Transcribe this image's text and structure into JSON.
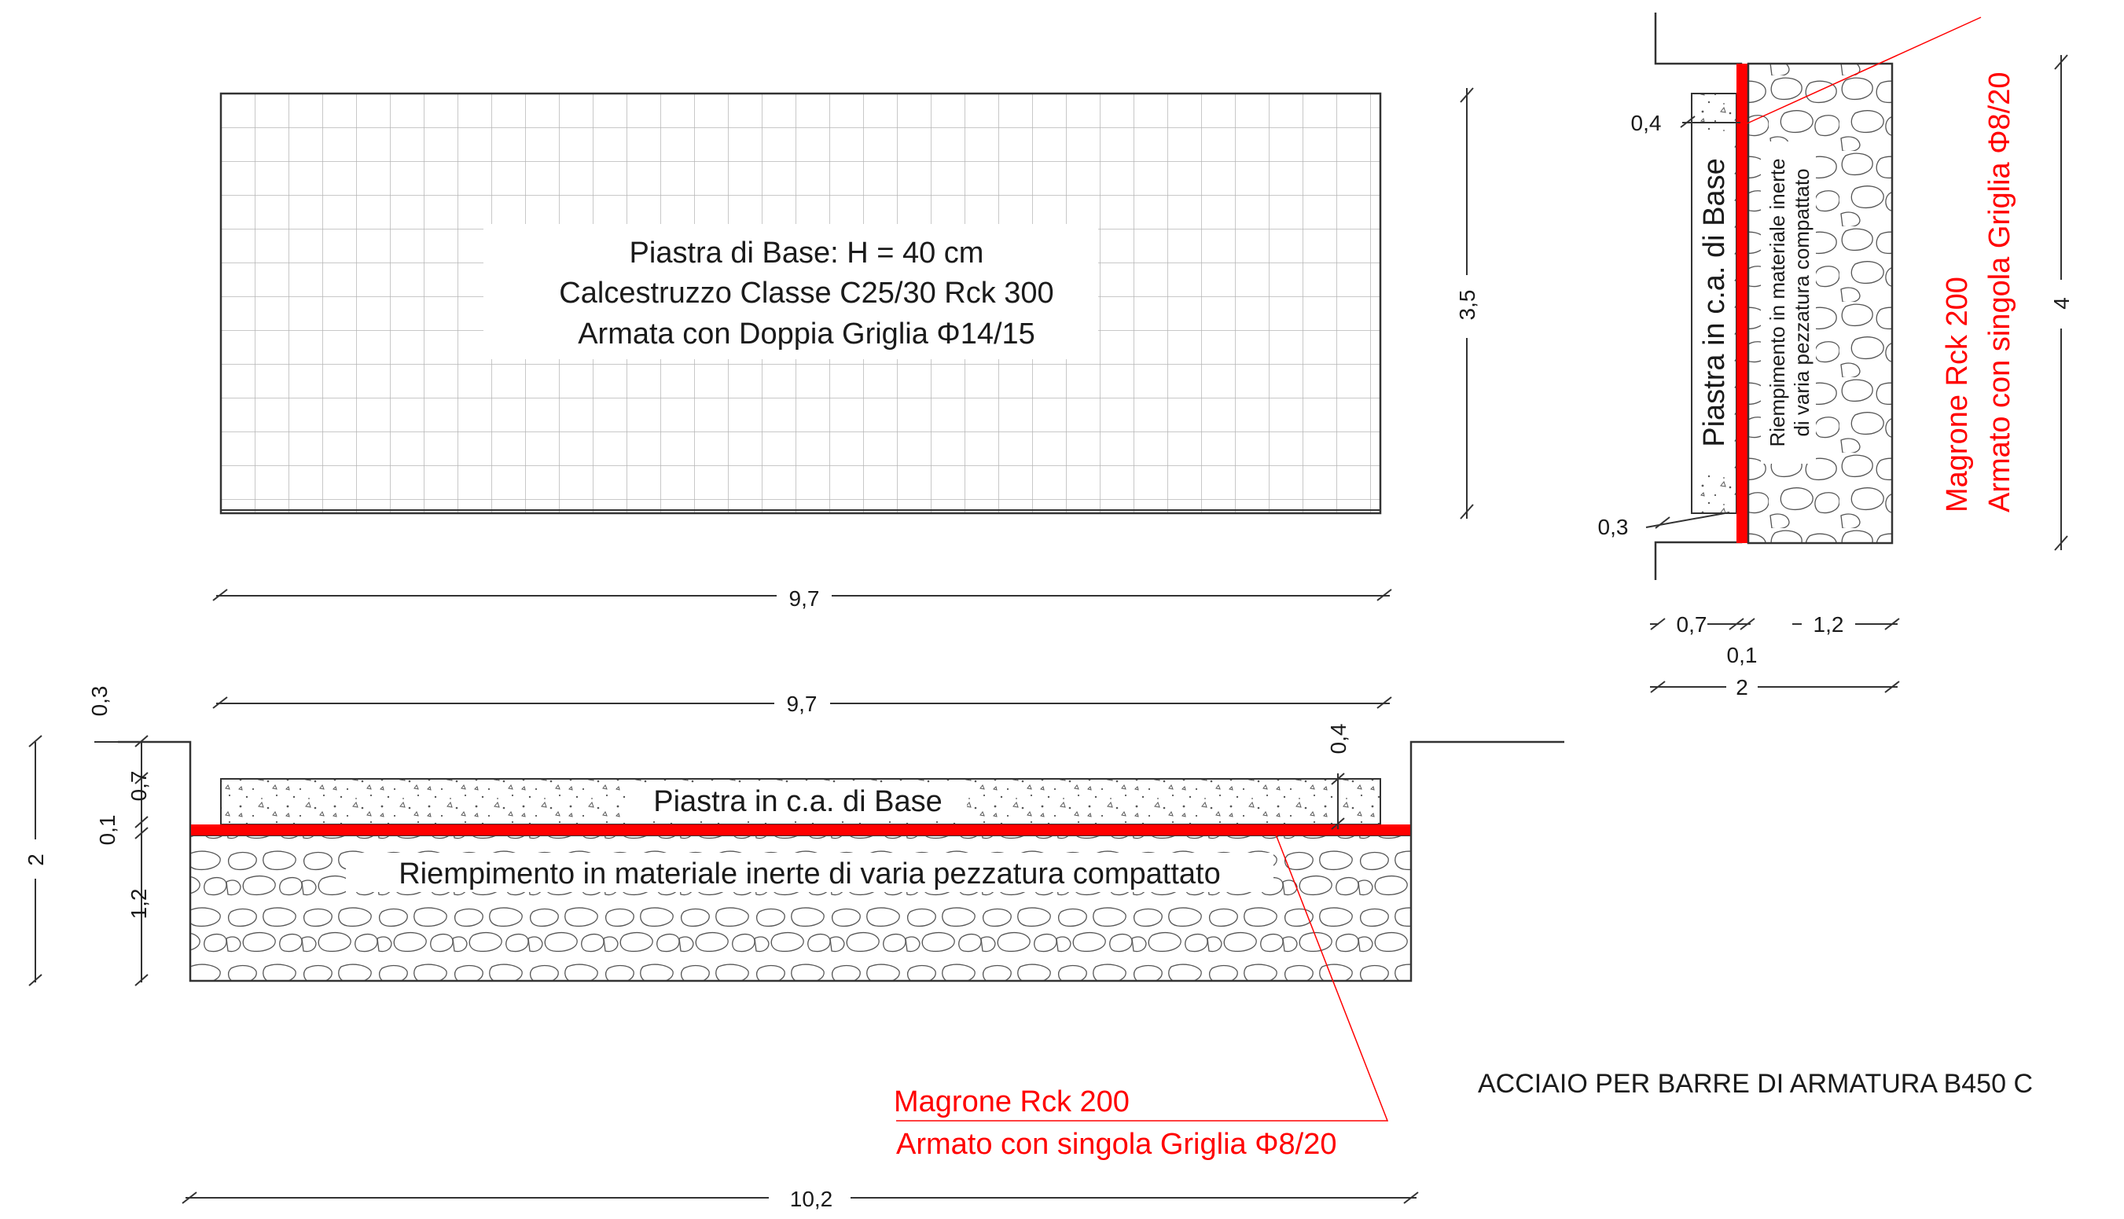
{
  "plan": {
    "title_line1": "Piastra di Base: H = 40 cm",
    "title_line2": "Calcestruzzo Classe C25/30 Rck 300",
    "title_line3": "Armata con Doppia Griglia Φ14/15",
    "dim_width": "9,7",
    "dim_height": "3,5"
  },
  "section": {
    "slab_label": "Piastra in c.a. di Base",
    "fill_label": "Riempimento in materiale inerte di varia pezzatura compattato",
    "dim_top_width": "9,7",
    "dim_bottom_width": "10,2",
    "dim_slab_thickness": "0,4",
    "dim_left_03": "0,3",
    "dim_left_07": "0,7",
    "dim_left_01": "0,1",
    "dim_left_12": "1,2",
    "dim_left_total": "2",
    "lean_line1": "Magrone Rck 200",
    "lean_line2": "Armato con singola Griglia Φ8/20"
  },
  "side_section": {
    "slab_label": "Piastra in c.a. di Base",
    "fill_line1": "Riempimento in materiale inerte",
    "fill_line2": "di varia pezzatura compattato",
    "dim_04": "0,4",
    "dim_03": "0,3",
    "dim_07": "0,7",
    "dim_01": "0,1",
    "dim_12": "1,2",
    "dim_total_width": "2",
    "dim_total_height": "4",
    "lean_line1": "Magrone Rck 200",
    "lean_line2": "Armato con singola Griglia Φ8/20"
  },
  "note": "ACCIAIO PER BARRE DI ARMATURA B450 C",
  "colors": {
    "line": "#333333",
    "red": "#ff0000",
    "grid": "#b5b5b5"
  }
}
